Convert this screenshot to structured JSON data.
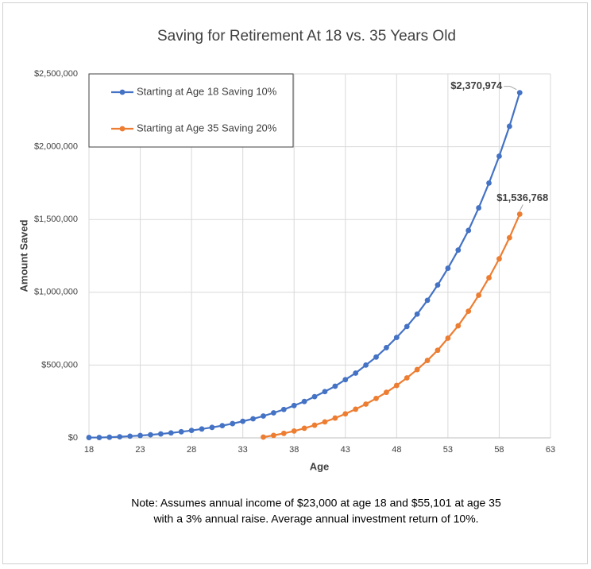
{
  "chart_data": {
    "type": "line",
    "title": "Saving for Retirement At 18 vs. 35 Years Old",
    "x_label": "Age",
    "y_label": "Amount Saved",
    "note": [
      "Note: Assumes annual income of $23,000 at age 18 and $55,101 at age 35",
      "with a 3% annual raise. Average annual investment return of 10%."
    ],
    "xlim": [
      18,
      63
    ],
    "xticks": [
      18,
      23,
      28,
      33,
      38,
      43,
      48,
      53,
      58,
      63
    ],
    "ylim": [
      0,
      2500000
    ],
    "yticks": [
      {
        "value": 0,
        "label": "$0"
      },
      {
        "value": 500000,
        "label": "$500,000"
      },
      {
        "value": 1000000,
        "label": "$1,000,000"
      },
      {
        "value": 1500000,
        "label": "$1,500,000"
      },
      {
        "value": 2000000,
        "label": "$2,000,000"
      },
      {
        "value": 2500000,
        "label": "$2,500,000"
      }
    ],
    "grid": true,
    "legend": "upper left",
    "series": [
      {
        "name": "Starting at Age 18 Saving 10%",
        "color": "#4472c4",
        "x": [
          18,
          19,
          20,
          21,
          22,
          23,
          24,
          25,
          26,
          27,
          28,
          29,
          30,
          31,
          32,
          33,
          34,
          35,
          36,
          37,
          38,
          39,
          40,
          41,
          42,
          43,
          44,
          45,
          46,
          47,
          48,
          49,
          50,
          51,
          52,
          53,
          54,
          55,
          56,
          57,
          58,
          59,
          60
        ],
        "values": [
          2300,
          2500,
          4500,
          7500,
          11500,
          16000,
          21000,
          27000,
          34000,
          42000,
          51000,
          61000,
          72000,
          84000,
          98000,
          114000,
          131000,
          150000,
          172000,
          195000,
          222000,
          250000,
          283000,
          318000,
          355000,
          400000,
          445000,
          500000,
          555000,
          620000,
          690000,
          765000,
          850000,
          945000,
          1050000,
          1165000,
          1290000,
          1425000,
          1580000,
          1750000,
          1935000,
          2140000,
          2370974
        ],
        "value_labels": [
          null,
          null,
          null,
          null,
          null,
          null,
          null,
          null,
          null,
          null,
          null,
          null,
          null,
          null,
          null,
          null,
          null,
          null,
          null,
          null,
          null,
          null,
          null,
          null,
          null,
          null,
          null,
          null,
          null,
          null,
          null,
          null,
          null,
          null,
          null,
          null,
          null,
          null,
          null,
          null,
          null,
          null,
          "$2,370,974"
        ]
      },
      {
        "name": "Starting at Age 35 Saving 20%",
        "color": "#ed7d31",
        "x": [
          35,
          36,
          37,
          38,
          39,
          40,
          41,
          42,
          43,
          44,
          45,
          46,
          47,
          48,
          49,
          50,
          51,
          52,
          53,
          54,
          55,
          56,
          57,
          58,
          59,
          60
        ],
        "values": [
          5500,
          17000,
          31000,
          47000,
          66000,
          87000,
          110000,
          136000,
          165000,
          197000,
          232000,
          271000,
          313000,
          360000,
          412000,
          469000,
          532000,
          602000,
          685000,
          770000,
          870000,
          980000,
          1100000,
          1230000,
          1375000,
          1536768
        ],
        "value_labels": [
          null,
          null,
          null,
          null,
          null,
          null,
          null,
          null,
          null,
          null,
          null,
          null,
          null,
          null,
          null,
          null,
          null,
          null,
          null,
          null,
          null,
          null,
          null,
          null,
          null,
          "$1,536,768"
        ]
      }
    ]
  }
}
